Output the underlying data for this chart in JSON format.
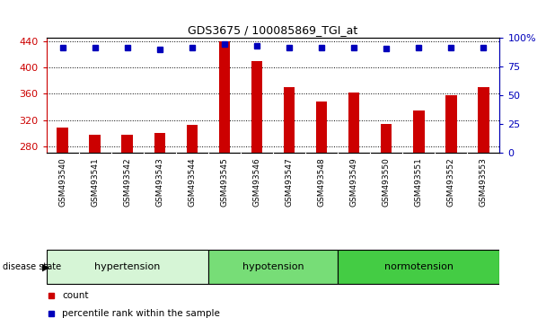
{
  "title": "GDS3675 / 100085869_TGI_at",
  "samples": [
    "GSM493540",
    "GSM493541",
    "GSM493542",
    "GSM493543",
    "GSM493544",
    "GSM493545",
    "GSM493546",
    "GSM493547",
    "GSM493548",
    "GSM493549",
    "GSM493550",
    "GSM493551",
    "GSM493552",
    "GSM493553"
  ],
  "counts": [
    308,
    298,
    297,
    300,
    312,
    440,
    410,
    370,
    348,
    362,
    314,
    334,
    358,
    370
  ],
  "percentiles": [
    92,
    92,
    92,
    90,
    92,
    95,
    93,
    92,
    92,
    92,
    91,
    92,
    92,
    92
  ],
  "groups": [
    {
      "name": "hypertension",
      "start": 0,
      "end": 5,
      "color": "#d6f5d6"
    },
    {
      "name": "hypotension",
      "start": 5,
      "end": 9,
      "color": "#77dd77"
    },
    {
      "name": "normotension",
      "start": 9,
      "end": 14,
      "color": "#44cc44"
    }
  ],
  "ylim_left": [
    270,
    445
  ],
  "ylim_right": [
    0,
    100
  ],
  "yticks_left": [
    280,
    320,
    360,
    400,
    440
  ],
  "yticks_right": [
    0,
    25,
    50,
    75,
    100
  ],
  "bar_color": "#cc0000",
  "dot_color": "#0000bb",
  "grid_color": "#000000",
  "bar_width": 0.35,
  "tick_label_bg": "#c8c8c8",
  "legend_count_label": "count",
  "legend_pct_label": "percentile rank within the sample"
}
